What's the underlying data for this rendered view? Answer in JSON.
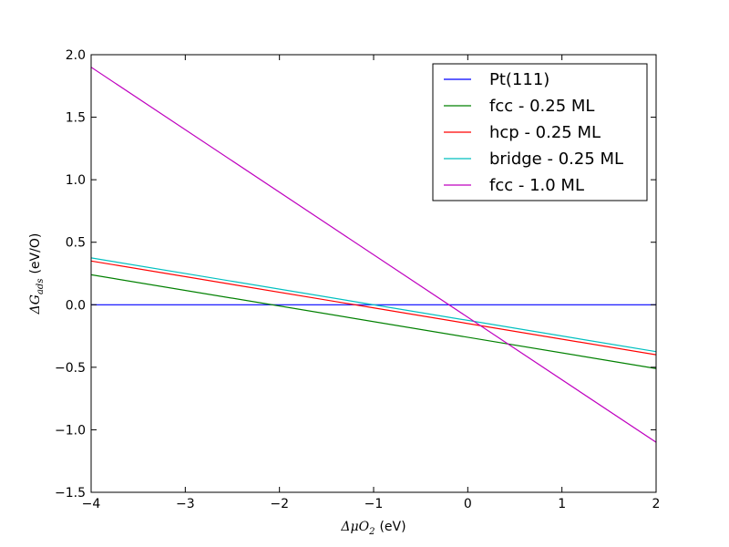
{
  "chart_data": {
    "type": "line",
    "title": "",
    "xlabel_math": "ΔμO",
    "xlabel_sub": "2",
    "xlabel_unit": "(eV)",
    "ylabel_math": "ΔG",
    "ylabel_sub": "ads",
    "ylabel_unit": "(eV/O)",
    "xlim": [
      -4,
      2
    ],
    "ylim": [
      -1.5,
      2.0
    ],
    "xticks": [
      -4,
      -3,
      -2,
      -1,
      0,
      1,
      2
    ],
    "xtick_labels": [
      "−4",
      "−3",
      "−2",
      "−1",
      "0",
      "1",
      "2"
    ],
    "yticks": [
      -1.5,
      -1.0,
      -0.5,
      0.0,
      0.5,
      1.0,
      1.5,
      2.0
    ],
    "ytick_labels": [
      "−1.5",
      "−1.0",
      "−0.5",
      "0.0",
      "0.5",
      "1.0",
      "1.5",
      "2.0"
    ],
    "grid": false,
    "legend_position": "top-right",
    "series": [
      {
        "name": "Pt(111)",
        "color": "#0000ff",
        "x": [
          -4,
          2
        ],
        "y": [
          0.0,
          0.0
        ]
      },
      {
        "name": "fcc - 0.25 ML",
        "color": "#008000",
        "x": [
          -4,
          2
        ],
        "y": [
          0.24,
          -0.51
        ]
      },
      {
        "name": "hcp - 0.25 ML",
        "color": "#ff0000",
        "x": [
          -4,
          2
        ],
        "y": [
          0.35,
          -0.4
        ]
      },
      {
        "name": "bridge - 0.25 ML",
        "color": "#00bfbf",
        "x": [
          -4,
          2
        ],
        "y": [
          0.375,
          -0.375
        ]
      },
      {
        "name": "fcc - 1.0 ML",
        "color": "#bf00bf",
        "x": [
          -4,
          2
        ],
        "y": [
          1.9,
          -1.1
        ]
      }
    ]
  }
}
